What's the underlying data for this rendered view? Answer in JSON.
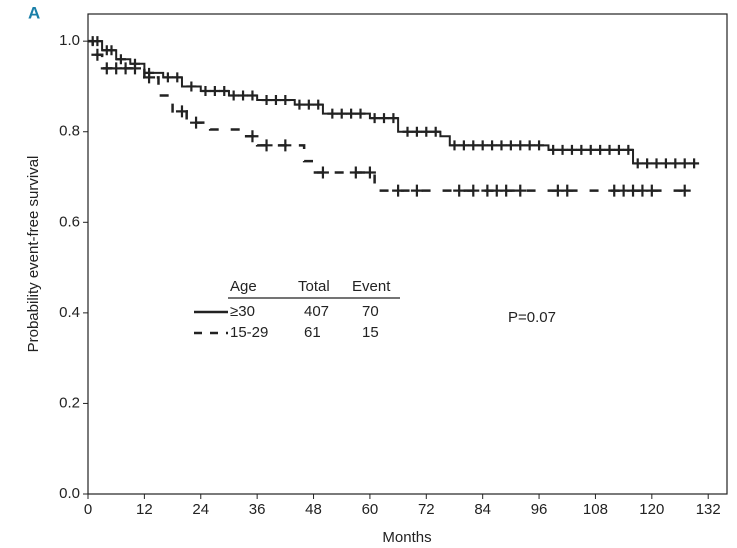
{
  "chart_data": {
    "type": "step",
    "panel_label": "A",
    "xlabel": "Months",
    "ylabel": "Probability event-free survival",
    "annotation": "P=0.07",
    "legend_header": [
      "Age",
      "Total",
      "Event"
    ],
    "xlim": [
      0,
      136
    ],
    "ylim": [
      0,
      1.06
    ],
    "xticks": [
      0,
      12,
      24,
      36,
      48,
      60,
      72,
      84,
      96,
      108,
      120,
      132
    ],
    "yticks": [
      {
        "value": 0,
        "label": "0.0"
      },
      {
        "value": 0.2,
        "label": "0.2"
      },
      {
        "value": 0.4,
        "label": "0.4"
      },
      {
        "value": 0.6,
        "label": "0.6"
      },
      {
        "value": 0.8,
        "label": "0.8"
      },
      {
        "value": 1,
        "label": "1.0"
      }
    ],
    "series": [
      {
        "name": "≥30",
        "total": 407,
        "events": 70,
        "color": "#222222",
        "dashed": false,
        "x": [
          0,
          3,
          6,
          9,
          12,
          16,
          20,
          24,
          30,
          36,
          44,
          50,
          60,
          66,
          75,
          77,
          98,
          116,
          130
        ],
        "values": [
          1.0,
          0.98,
          0.96,
          0.95,
          0.93,
          0.92,
          0.9,
          0.89,
          0.88,
          0.87,
          0.86,
          0.84,
          0.83,
          0.8,
          0.79,
          0.77,
          0.76,
          0.73,
          0.73
        ],
        "censored": [
          1,
          2,
          4,
          5,
          7,
          10,
          13,
          17,
          19,
          22,
          25,
          27,
          29,
          31,
          33,
          35,
          38,
          40,
          42,
          45,
          47,
          49,
          52,
          54,
          56,
          58,
          61,
          63,
          65,
          68,
          70,
          72,
          74,
          78,
          80,
          82,
          84,
          86,
          88,
          90,
          92,
          94,
          96,
          99,
          101,
          103,
          105,
          107,
          109,
          111,
          113,
          115,
          117,
          119,
          121,
          123,
          125,
          127,
          129
        ]
      },
      {
        "name": "15-29",
        "total": 61,
        "events": 15,
        "color": "#222222",
        "dashed": true,
        "x": [
          0,
          1,
          3,
          12,
          15,
          18,
          21,
          26,
          33,
          36,
          46,
          48,
          61,
          128
        ],
        "values": [
          1.0,
          0.97,
          0.94,
          0.92,
          0.88,
          0.845,
          0.82,
          0.805,
          0.79,
          0.77,
          0.735,
          0.71,
          0.67,
          0.67
        ],
        "censored": [
          2,
          4,
          6,
          8,
          10,
          13,
          20,
          23,
          35,
          38,
          42,
          50,
          57,
          60,
          66,
          70,
          79,
          82,
          85,
          87,
          89,
          92,
          100,
          102,
          112,
          114,
          116,
          118,
          120,
          127
        ]
      }
    ]
  }
}
